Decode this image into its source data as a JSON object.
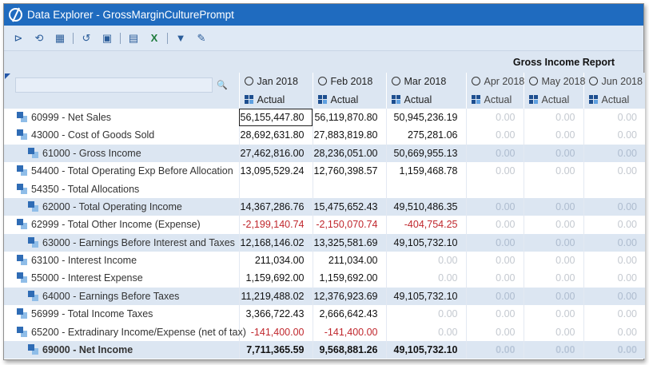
{
  "window": {
    "title": "Data Explorer - GrossMarginCulturePrompt"
  },
  "toolbar": {
    "buttons": [
      {
        "name": "run-icon",
        "glyph": "⊳"
      },
      {
        "name": "refresh-data-icon",
        "glyph": "⟲"
      },
      {
        "name": "calculator-icon",
        "glyph": "▦"
      },
      {
        "name": "undo-icon",
        "glyph": "↺"
      },
      {
        "name": "save-icon",
        "glyph": "▣"
      },
      {
        "name": "export-pdf-icon",
        "glyph": "▤"
      },
      {
        "name": "export-excel-icon",
        "glyph": "X"
      },
      {
        "name": "filter-icon",
        "glyph": "▼"
      },
      {
        "name": "edit-icon",
        "glyph": "✎"
      }
    ]
  },
  "report": {
    "title": "Gross Income Report"
  },
  "columns": [
    {
      "period": "Jan 2018",
      "scenario": "Actual"
    },
    {
      "period": "Feb 2018",
      "scenario": "Actual"
    },
    {
      "period": "Mar 2018",
      "scenario": "Actual"
    },
    {
      "period": "Apr 2018",
      "scenario": "Actual"
    },
    {
      "period": "May 2018",
      "scenario": "Actual"
    },
    {
      "period": "Jun 2018",
      "scenario": "Actual"
    }
  ],
  "rows": [
    {
      "label": "60999 - Net Sales",
      "level": 1,
      "values": [
        "56,155,447.80",
        "56,119,870.80",
        "50,945,236.19",
        "0.00",
        "0.00",
        "0.00"
      ]
    },
    {
      "label": "43000 - Cost of Goods Sold",
      "level": 1,
      "values": [
        "28,692,631.80",
        "27,883,819.80",
        "275,281.06",
        "0.00",
        "0.00",
        "0.00"
      ]
    },
    {
      "label": "61000 - Gross Income",
      "level": 2,
      "values": [
        "27,462,816.00",
        "28,236,051.00",
        "50,669,955.13",
        "0.00",
        "0.00",
        "0.00"
      ]
    },
    {
      "label": "54400 - Total Operating Exp Before Allocation",
      "level": 1,
      "values": [
        "13,095,529.24",
        "12,760,398.57",
        "1,159,468.78",
        "0.00",
        "0.00",
        "0.00"
      ]
    },
    {
      "label": "54350 - Total Allocations",
      "level": 1,
      "values": [
        "",
        "",
        "",
        "",
        "",
        ""
      ]
    },
    {
      "label": "62000 - Total Operating Income",
      "level": 2,
      "values": [
        "14,367,286.76",
        "15,475,652.43",
        "49,510,486.35",
        "0.00",
        "0.00",
        "0.00"
      ]
    },
    {
      "label": "62999 - Total Other Income (Expense)",
      "level": 1,
      "values": [
        "-2,199,140.74",
        "-2,150,070.74",
        "-404,754.25",
        "0.00",
        "0.00",
        "0.00"
      ]
    },
    {
      "label": "63000 - Earnings Before Interest and Taxes",
      "level": 2,
      "values": [
        "12,168,146.02",
        "13,325,581.69",
        "49,105,732.10",
        "0.00",
        "0.00",
        "0.00"
      ]
    },
    {
      "label": "63100 - Interest Income",
      "level": 1,
      "values": [
        "211,034.00",
        "211,034.00",
        "0.00",
        "0.00",
        "0.00",
        "0.00"
      ]
    },
    {
      "label": "55000 - Interest Expense",
      "level": 1,
      "values": [
        "1,159,692.00",
        "1,159,692.00",
        "0.00",
        "0.00",
        "0.00",
        "0.00"
      ]
    },
    {
      "label": "64000 - Earnings Before Taxes",
      "level": 2,
      "values": [
        "11,219,488.02",
        "12,376,923.69",
        "49,105,732.10",
        "0.00",
        "0.00",
        "0.00"
      ]
    },
    {
      "label": "56999 - Total Income Taxes",
      "level": 1,
      "values": [
        "3,366,722.43",
        "2,666,642.43",
        "0.00",
        "0.00",
        "0.00",
        "0.00"
      ]
    },
    {
      "label": "65200 - Extradinary Income/Expense (net of tax)",
      "level": 1,
      "values": [
        "-141,400.00",
        "-141,400.00",
        "0.00",
        "0.00",
        "0.00",
        "0.00"
      ]
    },
    {
      "label": "69000 - Net Income",
      "level": 2,
      "total": true,
      "values": [
        "7,711,365.59",
        "9,568,881.26",
        "49,105,732.10",
        "0.00",
        "0.00",
        "0.00"
      ]
    }
  ],
  "colors": {
    "titlebar": "#1f6bbf",
    "header_bg": "#dce6f2",
    "negative": "#c0272d",
    "zero": "#c4c9d0"
  }
}
